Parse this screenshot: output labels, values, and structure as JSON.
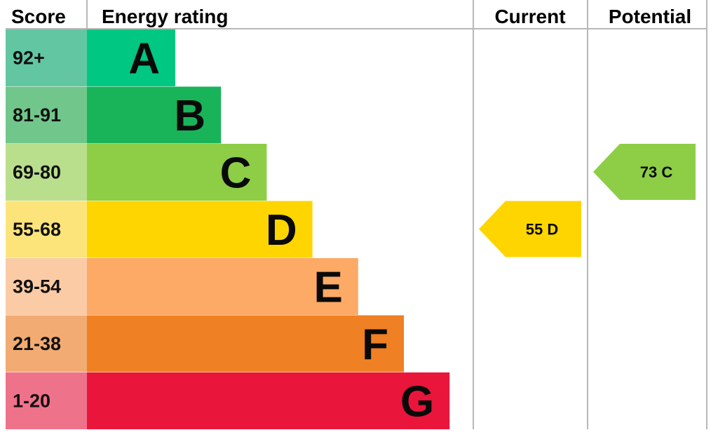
{
  "headers": {
    "score": "Score",
    "energy_rating": "Energy rating",
    "current": "Current",
    "potential": "Potential"
  },
  "chart_data": {
    "type": "bar",
    "categories": [
      "A",
      "B",
      "C",
      "D",
      "E",
      "F",
      "G"
    ],
    "bands": [
      {
        "band": "A",
        "score_range": "92+",
        "color": "#00c781",
        "score_color": "#63c6a3"
      },
      {
        "band": "B",
        "score_range": "81-91",
        "color": "#19b459",
        "score_color": "#71c78b"
      },
      {
        "band": "C",
        "score_range": "69-80",
        "color": "#8dce46",
        "score_color": "#badf8c"
      },
      {
        "band": "D",
        "score_range": "55-68",
        "color": "#ffd500",
        "score_color": "#fde47a"
      },
      {
        "band": "E",
        "score_range": "39-54",
        "color": "#fcaa65",
        "score_color": "#fbcba6"
      },
      {
        "band": "F",
        "score_range": "21-38",
        "color": "#ef8023",
        "score_color": "#f2ab72"
      },
      {
        "band": "G",
        "score_range": "1-20",
        "color": "#e9153b",
        "score_color": "#ef728b"
      }
    ],
    "current": {
      "value": 55,
      "band": "D",
      "label": "55  D",
      "color": "#ffd500"
    },
    "potential": {
      "value": 73,
      "band": "C",
      "label": "73  C",
      "color": "#8dce46"
    }
  }
}
